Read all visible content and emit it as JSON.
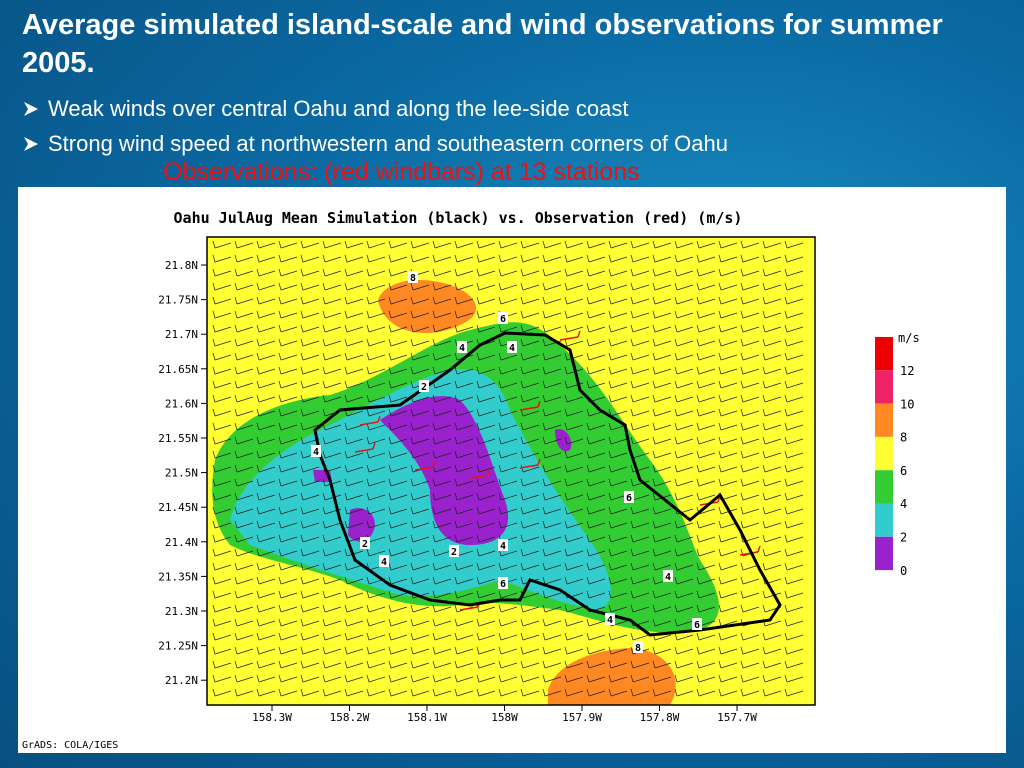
{
  "header": {
    "title": "Average simulated island-scale and wind observations for summer 2005.",
    "bullets": [
      "Weak winds over central Oahu and along the lee-side coast",
      "Strong wind speed at northwestern and southeastern corners of Oahu"
    ]
  },
  "subtitle": "Observations: (red windbars) at 13 stations",
  "figure": {
    "title": "Oahu JulAug Mean Simulation (black) vs. Observation (red) (m/s)",
    "y_labels": [
      "21.8N",
      "21.75N",
      "21.7N",
      "21.65N",
      "21.6N",
      "21.55N",
      "21.5N",
      "21.45N",
      "21.4N",
      "21.35N",
      "21.3N",
      "21.25N",
      "21.2N"
    ],
    "x_labels": [
      "158.3W",
      "158.2W",
      "158.1W",
      "158W",
      "157.9W",
      "157.8W",
      "157.7W"
    ],
    "colorbar": {
      "unit": "m/s",
      "labels": [
        "12",
        "10",
        "8",
        "6",
        "4",
        "2",
        "0"
      ]
    },
    "contour_labels": [
      "8",
      "6",
      "4",
      "4",
      "2",
      "4",
      "2",
      "4",
      "2",
      "4",
      "6",
      "6",
      "4",
      "6",
      "4",
      "8"
    ],
    "footer": "GrADS: COLA/IGES"
  }
}
